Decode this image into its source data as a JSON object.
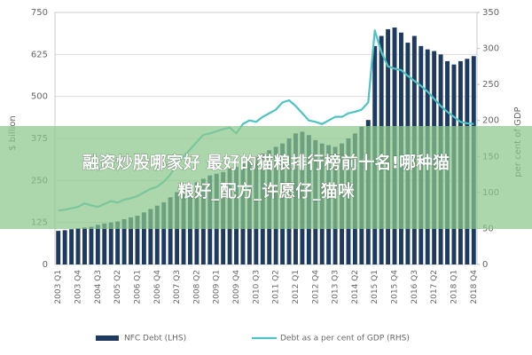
{
  "chart_data": {
    "type": "bar",
    "ylabel": "$ billion",
    "y2label": "per cent of GDP",
    "categories": [
      "2003 Q1",
      null,
      null,
      "2003 Q4",
      null,
      null,
      "2004 Q3",
      null,
      null,
      "2005 Q2",
      null,
      null,
      "2006 Q1",
      null,
      null,
      "2006 Q4",
      null,
      null,
      "2007 Q3",
      null,
      null,
      "2008 Q2",
      null,
      null,
      "2009 Q1",
      null,
      null,
      "2009 Q4",
      null,
      null,
      "2010 Q3",
      null,
      null,
      "2011 Q2",
      null,
      null,
      "2012 Q1",
      null,
      null,
      "2012 Q4",
      null,
      null,
      "2013 Q3",
      null,
      null,
      "2014 Q2",
      null,
      null,
      "2015 Q1",
      null,
      null,
      "2015 Q4",
      null,
      null,
      "2016 Q3",
      null,
      null,
      "2017 Q2",
      null,
      null,
      "2018 Q1",
      null,
      null,
      "2018 Q4"
    ],
    "series": [
      {
        "name": "NFC Debt (LHS)",
        "type": "bar",
        "color": "#1f3a5f",
        "values": [
          100,
          102,
          105,
          108,
          110,
          112,
          118,
          122,
          125,
          128,
          135,
          140,
          145,
          155,
          165,
          175,
          185,
          200,
          215,
          225,
          235,
          245,
          255,
          265,
          270,
          275,
          285,
          290,
          300,
          310,
          320,
          330,
          340,
          350,
          360,
          375,
          390,
          395,
          385,
          370,
          360,
          355,
          350,
          360,
          375,
          390,
          410,
          430,
          650,
          680,
          700,
          705,
          690,
          660,
          680,
          650,
          640,
          635,
          625,
          605,
          595,
          605,
          612,
          620
        ]
      },
      {
        "name": "Debt as a per cent of GDP (RHS)",
        "type": "line",
        "axis": "y2",
        "color": "#4fc3c3",
        "values": [
          75,
          76,
          78,
          80,
          85,
          82,
          80,
          84,
          88,
          86,
          90,
          92,
          95,
          100,
          105,
          108,
          115,
          125,
          140,
          150,
          160,
          170,
          180,
          182,
          185,
          188,
          190,
          182,
          195,
          200,
          198,
          205,
          210,
          215,
          225,
          228,
          220,
          210,
          200,
          198,
          195,
          200,
          205,
          205,
          210,
          212,
          215,
          225,
          325,
          295,
          275,
          272,
          270,
          262,
          255,
          248,
          240,
          230,
          220,
          212,
          205,
          198,
          196,
          195
        ]
      }
    ],
    "ylim": [
      0,
      750
    ],
    "yticks": [
      0,
      125,
      250,
      375,
      500,
      625,
      750
    ],
    "y2lim": [
      0,
      350
    ],
    "y2ticks": [
      0,
      50,
      100,
      150,
      200,
      250,
      300,
      350
    ],
    "grid": true
  },
  "banner": {
    "lines": [
      "融资炒股哪家好 最好的猫粮排行榜前十名!哪种猫",
      "粮好_配方_许愿仔_猫咪"
    ]
  }
}
